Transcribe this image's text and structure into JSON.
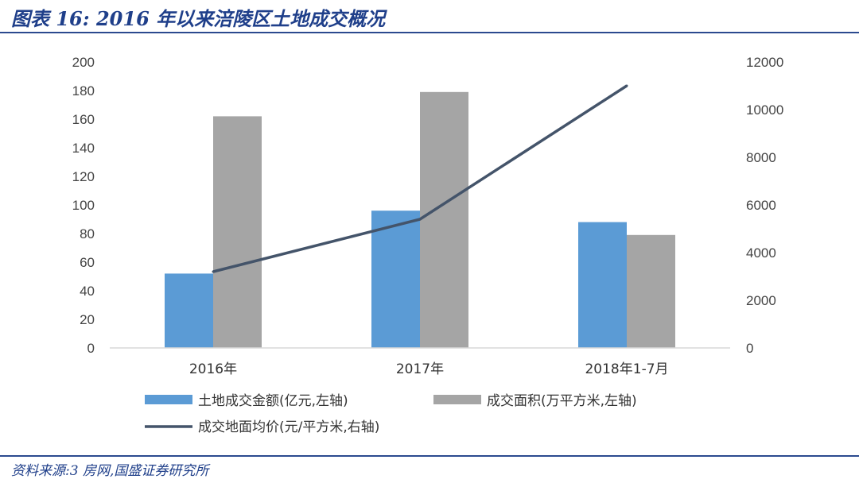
{
  "title": "图表 16:  2016 年以来涪陵区土地成交概况",
  "source": "资料来源:3 房网,国盛证券研究所",
  "colors": {
    "title": "#1f3f8a",
    "bar1": "#5b9bd5",
    "bar2": "#a5a5a5",
    "line": "#44546a",
    "axis": "#d9d9d9"
  },
  "chart_data": {
    "type": "bar",
    "categories": [
      "2016年",
      "2017年",
      "2018年1-7月"
    ],
    "series": [
      {
        "name": "土地成交金额(亿元,左轴)",
        "type": "bar",
        "axis": "left",
        "values": [
          52,
          96,
          88
        ]
      },
      {
        "name": "成交面积(万平方米,左轴)",
        "type": "bar",
        "axis": "left",
        "values": [
          162,
          179,
          79
        ]
      },
      {
        "name": "成交地面均价(元/平方米,右轴)",
        "type": "line",
        "axis": "right",
        "values": [
          3200,
          5400,
          11000
        ]
      }
    ],
    "left_axis": {
      "ylim": [
        0,
        200
      ],
      "ticks": [
        "0",
        "20",
        "40",
        "60",
        "80",
        "100",
        "120",
        "140",
        "160",
        "180",
        "200"
      ]
    },
    "right_axis": {
      "ylim": [
        0,
        12000
      ],
      "ticks": [
        "0",
        "2000",
        "4000",
        "6000",
        "8000",
        "10000",
        "12000"
      ]
    },
    "grid": false,
    "legend": "bottom"
  }
}
